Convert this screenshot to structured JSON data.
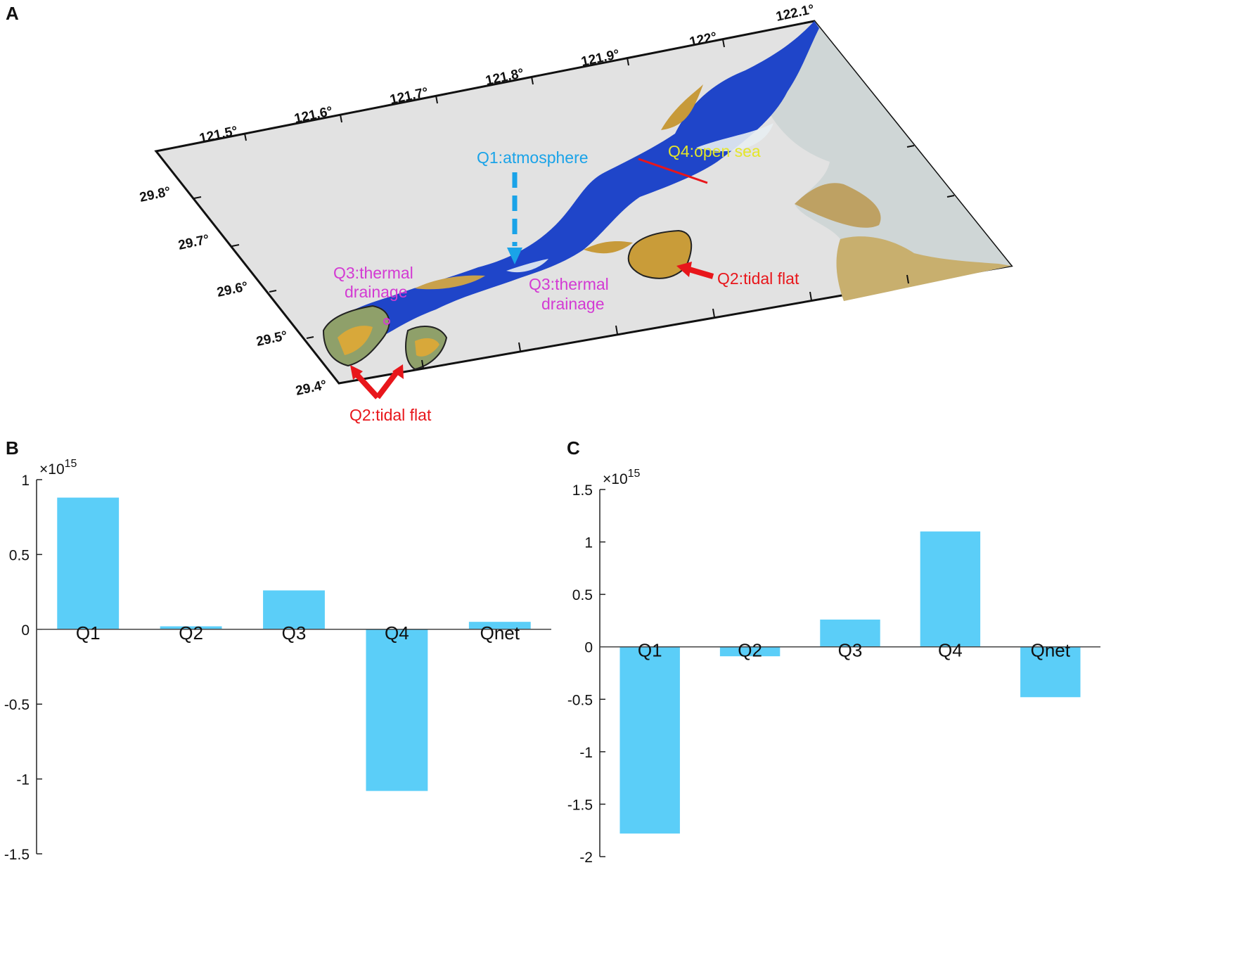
{
  "panels": {
    "a": "A",
    "b": "B",
    "c": "C"
  },
  "map": {
    "lon_labels": [
      "121.5°",
      "121.6°",
      "121.7°",
      "121.8°",
      "121.9°",
      "122°",
      "122.1°"
    ],
    "lat_labels": [
      "29.8°",
      "29.7°",
      "29.6°",
      "29.5°",
      "29.4°"
    ],
    "annotations": {
      "q1": "Q1:atmosphere",
      "q4": "Q4:open sea",
      "q2_right": "Q2:tidal flat",
      "q2_bottom": "Q2:tidal flat",
      "q3_left_line1": "Q3:thermal",
      "q3_left_line2": "drainage",
      "q3_mid_line1": "Q3:thermal",
      "q3_mid_line2": "drainage"
    },
    "colors": {
      "q1": "#1aa3e8",
      "q2": "#e8161b",
      "q3": "#d33ad3",
      "q4": "#e4e62a"
    }
  },
  "chart_data": [
    {
      "type": "bar",
      "panel": "B",
      "categories": [
        "Q1",
        "Q2",
        "Q3",
        "Q4",
        "Qnet"
      ],
      "values": [
        0.88,
        0.02,
        0.26,
        -1.08,
        0.05
      ],
      "exponent_label": "×10",
      "exponent": "15",
      "ylim": [
        -1.5,
        1
      ],
      "yticks": [
        1,
        0.5,
        0,
        -0.5,
        -1,
        -1.5
      ],
      "ytick_labels": [
        "1",
        "0.5",
        "0",
        "-0.5",
        "-1",
        "-1.5"
      ],
      "xlabel": "",
      "ylabel": "",
      "bar_color": "#5bcef8",
      "grid": false
    },
    {
      "type": "bar",
      "panel": "C",
      "categories": [
        "Q1",
        "Q2",
        "Q3",
        "Q4",
        "Qnet"
      ],
      "values": [
        -1.78,
        -0.09,
        0.26,
        1.1,
        -0.48
      ],
      "exponent_label": "×10",
      "exponent": "15",
      "ylim": [
        -2,
        1.5
      ],
      "yticks": [
        1.5,
        1,
        0.5,
        0,
        -0.5,
        -1,
        -1.5,
        -2
      ],
      "ytick_labels": [
        "1.5",
        "1",
        "0.5",
        "0",
        "-0.5",
        "-1",
        "-1.5",
        "-2"
      ],
      "xlabel": "",
      "ylabel": "",
      "bar_color": "#5bcef8",
      "grid": false
    }
  ]
}
